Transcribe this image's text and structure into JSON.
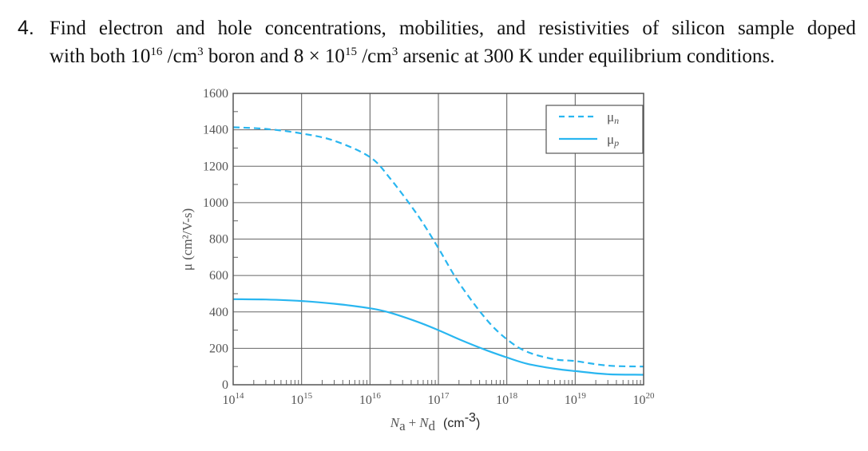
{
  "problem": {
    "number": "4.",
    "line1_words": [
      "Find",
      "electron",
      "and",
      "hole",
      "concentrations,",
      "mobilities,",
      "and",
      "resistivities",
      "of",
      "silicon",
      "sample",
      "doped"
    ],
    "line2": {
      "t1": "with both 10",
      "sup1": "16",
      "t2": " /cm",
      "sup2": "3",
      "t3": " boron and 8 × 10",
      "sup3": "15",
      "t4": " /cm",
      "sup4": "3",
      "t5": " arsenic at 300 K under equilibrium conditions."
    }
  },
  "chart_data": {
    "type": "line",
    "title": "",
    "xlabel": "N_a + N_d (cm^-3)",
    "xlabel_parts": {
      "na": "N",
      "na_sub": "a",
      "plus": "+",
      "nd": "N",
      "nd_sub": "d",
      "unit": "(cm",
      "unit_sup": "-3",
      "unit_close": ")"
    },
    "ylabel": "μ (cm²/V-s)",
    "xscale": "log",
    "xlim": [
      100000000000000.0,
      1e+20
    ],
    "ylim": [
      0,
      1600
    ],
    "grid": true,
    "x_ticks": [
      {
        "base": "10",
        "exp": "14"
      },
      {
        "base": "10",
        "exp": "15"
      },
      {
        "base": "10",
        "exp": "16"
      },
      {
        "base": "10",
        "exp": "17"
      },
      {
        "base": "10",
        "exp": "18"
      },
      {
        "base": "10",
        "exp": "19"
      },
      {
        "base": "10",
        "exp": "20"
      }
    ],
    "y_ticks": [
      "0",
      "200",
      "400",
      "600",
      "800",
      "1000",
      "1200",
      "1400",
      "1600"
    ],
    "y_tick_values": [
      0,
      200,
      400,
      600,
      800,
      1000,
      1200,
      1400,
      1600
    ],
    "legend": {
      "position": "top-right",
      "entries": [
        {
          "label": "μ",
          "sub": "n",
          "style": "dashed"
        },
        {
          "label": "μ",
          "sub": "p",
          "style": "solid"
        }
      ]
    },
    "line_color": "#29b6f0",
    "series": [
      {
        "name": "μn",
        "style": "dashed",
        "x": [
          100000000000000.0,
          300000000000000.0,
          1000000000000000.0,
          3000000000000000.0,
          1e+16,
          2e+16,
          5e+16,
          1e+17,
          2e+17,
          5e+17,
          1e+18,
          2e+18,
          5e+18,
          1e+19,
          3e+19,
          1e+20
        ],
        "y": [
          1414,
          1405,
          1380,
          1340,
          1250,
          1130,
          930,
          750,
          560,
          360,
          250,
          180,
          140,
          130,
          105,
          100
        ]
      },
      {
        "name": "μp",
        "style": "solid",
        "x": [
          100000000000000.0,
          300000000000000.0,
          1000000000000000.0,
          3000000000000000.0,
          1e+16,
          2e+16,
          5e+16,
          1e+17,
          2e+17,
          5e+17,
          1e+18,
          2e+18,
          5e+18,
          1e+19,
          3e+19,
          1e+20
        ],
        "y": [
          470,
          468,
          460,
          445,
          420,
          395,
          345,
          300,
          250,
          190,
          150,
          115,
          88,
          75,
          58,
          55
        ]
      }
    ]
  }
}
